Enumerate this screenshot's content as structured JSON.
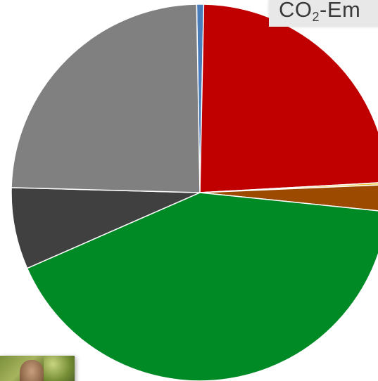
{
  "chart_data": {
    "type": "pie",
    "title_prefix": "CO",
    "title_sub": "2",
    "title_suffix": "-Em",
    "slices": [
      {
        "value": 0.6,
        "color": "#4a7ebb"
      },
      {
        "value": 23.8,
        "color": "#c00000"
      },
      {
        "value": 0.2,
        "color": "#e8c840"
      },
      {
        "value": 2.3,
        "color": "#9c4a00"
      },
      {
        "value": 41.8,
        "color": "#008a26"
      },
      {
        "value": 7.0,
        "color": "#404040"
      },
      {
        "value": 24.3,
        "color": "#808080"
      }
    ],
    "start_angle_deg": -1.0,
    "legend": "none"
  },
  "photo": {
    "icon": "person-photo-thumbnail"
  }
}
